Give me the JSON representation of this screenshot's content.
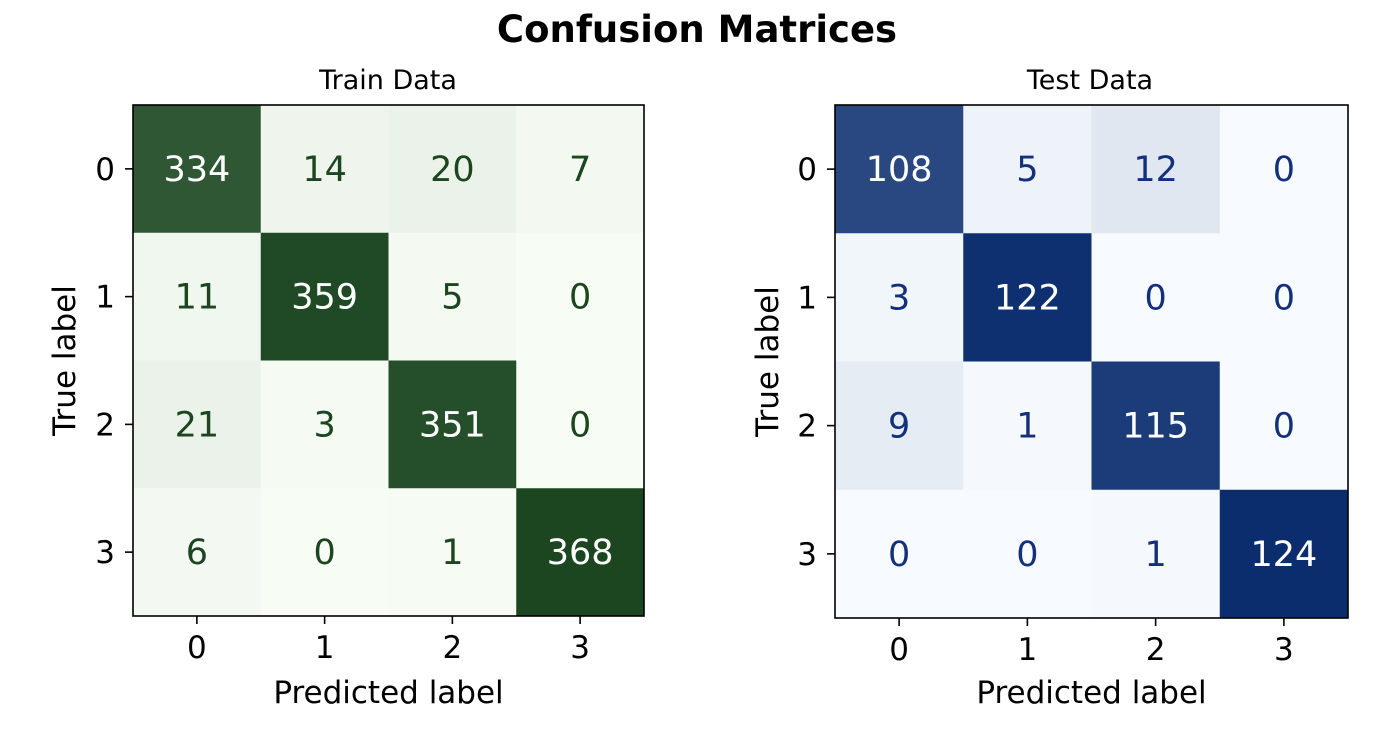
{
  "title": "Confusion Matrices",
  "chart_data": [
    {
      "type": "heatmap",
      "title": "Train Data",
      "xlabel": "Predicted label",
      "ylabel": "True label",
      "x_categories": [
        "0",
        "1",
        "2",
        "3"
      ],
      "y_categories": [
        "0",
        "1",
        "2",
        "3"
      ],
      "values": [
        [
          334,
          14,
          20,
          7
        ],
        [
          11,
          359,
          5,
          0
        ],
        [
          21,
          3,
          351,
          0
        ],
        [
          6,
          0,
          1,
          368
        ]
      ],
      "colormap": "Greens",
      "color_low": "#f7fcf5",
      "color_high": "#1b4620",
      "text_dark": "#1b4620",
      "text_light": "#ffffff",
      "colorbar": false
    },
    {
      "type": "heatmap",
      "title": "Test Data",
      "xlabel": "Predicted label",
      "ylabel": "True label",
      "x_categories": [
        "0",
        "1",
        "2",
        "3"
      ],
      "y_categories": [
        "0",
        "1",
        "2",
        "3"
      ],
      "values": [
        [
          108,
          5,
          12,
          0
        ],
        [
          3,
          122,
          0,
          0
        ],
        [
          9,
          1,
          115,
          0
        ],
        [
          0,
          0,
          1,
          124
        ]
      ],
      "colormap": "Blues",
      "color_low": "#f7fbff",
      "color_high": "#0b2d6e",
      "text_dark": "#13307a",
      "text_light": "#ffffff",
      "colorbar": false
    }
  ]
}
